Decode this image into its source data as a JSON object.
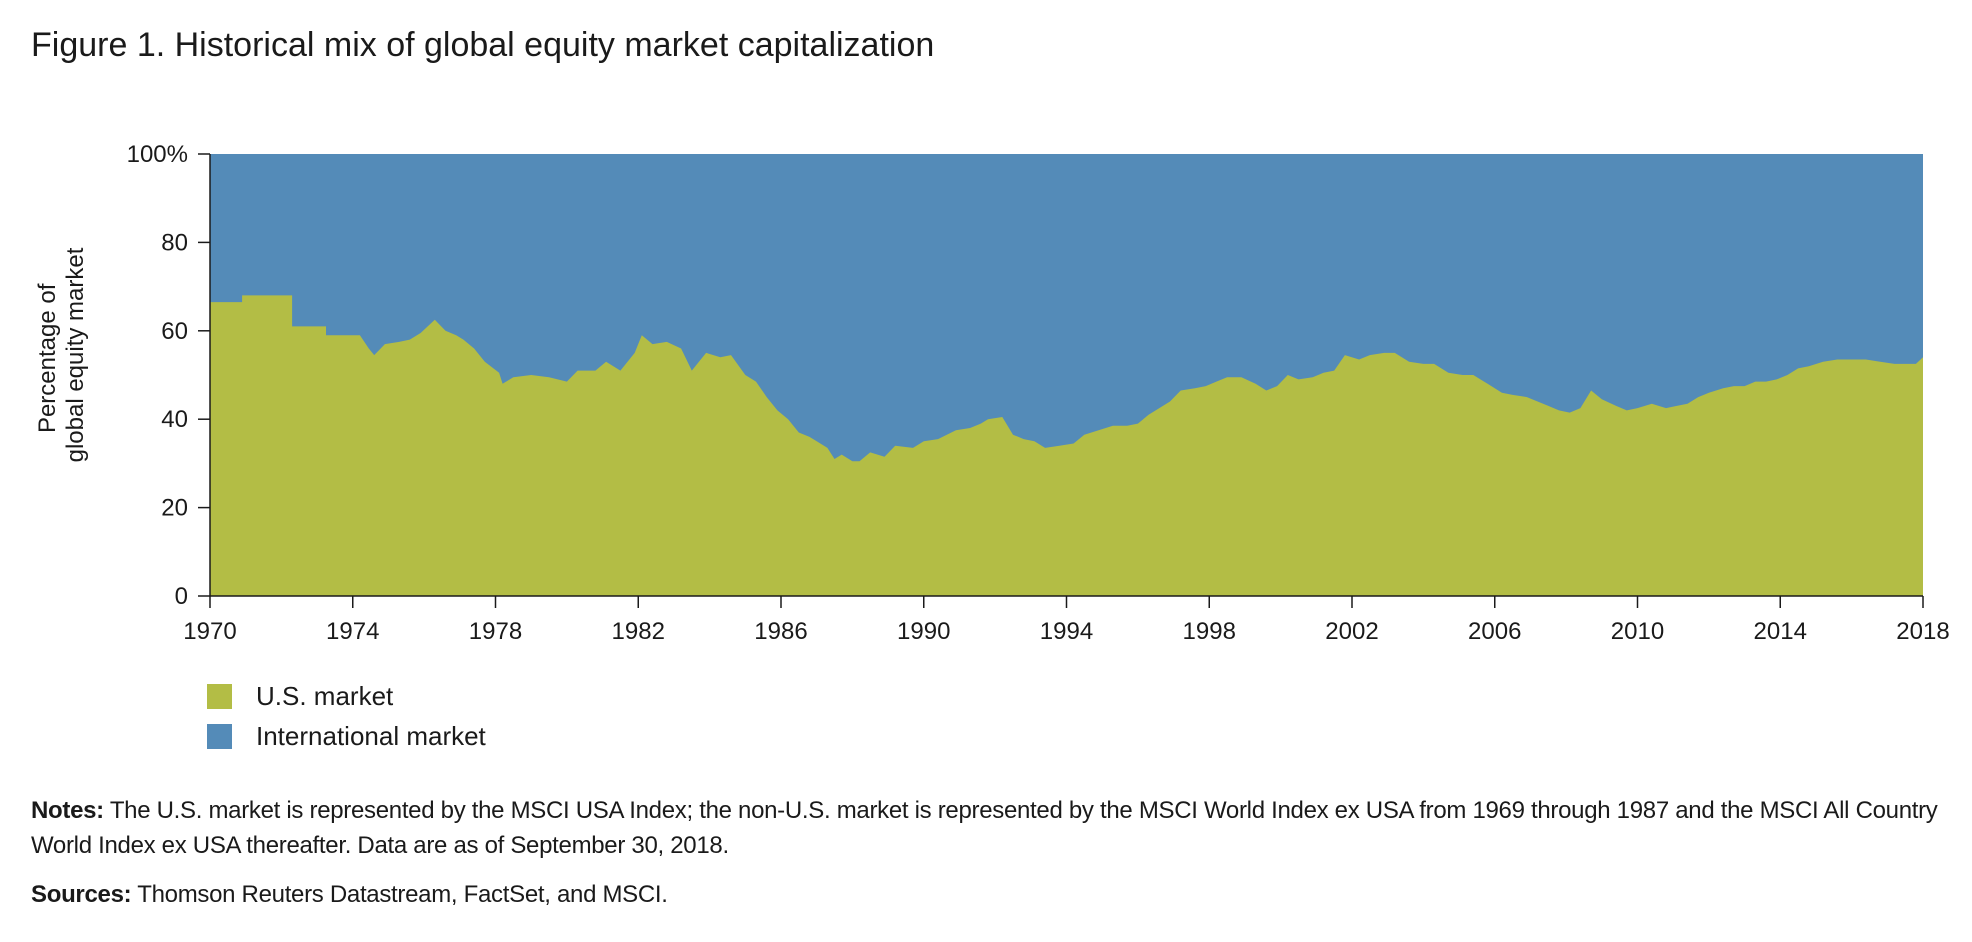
{
  "figure": {
    "title": "Figure 1. Historical mix of global equity market capitalization",
    "notes_label": "Notes:",
    "notes_text": "The U.S. market is represented by the MSCI USA Index; the non-U.S. market is represented by the MSCI World Index ex USA from 1969 through 1987 and the MSCI All Country World Index ex USA thereafter. Data are as of September 30, 2018.",
    "sources_label": "Sources:",
    "sources_text": "Thomson Reuters Datastream, FactSet, and MSCI."
  },
  "chart_data": {
    "type": "area",
    "stacked": true,
    "title": "Figure 1. Historical mix of global equity market capitalization",
    "ylabel_lines": [
      "Percentage of",
      "global equity market"
    ],
    "xlim": [
      1970,
      2018
    ],
    "ylim": [
      0,
      100
    ],
    "x_ticks": [
      1970,
      1974,
      1978,
      1982,
      1986,
      1990,
      1994,
      1998,
      2002,
      2006,
      2010,
      2014,
      2018
    ],
    "y_ticks": [
      0,
      20,
      40,
      60,
      80,
      100
    ],
    "y_tick_labels": [
      "0",
      "20",
      "40",
      "60",
      "80",
      "100%"
    ],
    "grid": false,
    "legend": "bottom-left",
    "colors": {
      "us": "#b3bd45",
      "intl": "#548bb8"
    },
    "series": [
      {
        "name": "U.S. market",
        "key": "us",
        "points": [
          [
            1970.0,
            66.5
          ],
          [
            1970.9,
            66.5
          ],
          [
            1970.9,
            68
          ],
          [
            1972.3,
            68
          ],
          [
            1972.3,
            61
          ],
          [
            1973.25,
            61
          ],
          [
            1973.25,
            59
          ],
          [
            1974.2,
            59
          ],
          [
            1974.45,
            56
          ],
          [
            1974.6,
            54.5
          ],
          [
            1974.9,
            57
          ],
          [
            1975.3,
            57.5
          ],
          [
            1975.6,
            58
          ],
          [
            1975.9,
            59.5
          ],
          [
            1976.1,
            61
          ],
          [
            1976.3,
            62.5
          ],
          [
            1976.6,
            60
          ],
          [
            1976.9,
            59
          ],
          [
            1977.1,
            58
          ],
          [
            1977.4,
            56
          ],
          [
            1977.7,
            53
          ],
          [
            1978.1,
            50.5
          ],
          [
            1978.2,
            48
          ],
          [
            1978.5,
            49.5
          ],
          [
            1979.0,
            50
          ],
          [
            1979.5,
            49.5
          ],
          [
            1980.0,
            48.5
          ],
          [
            1980.3,
            51
          ],
          [
            1980.8,
            51
          ],
          [
            1981.1,
            53
          ],
          [
            1981.5,
            51
          ],
          [
            1981.9,
            55
          ],
          [
            1982.1,
            59
          ],
          [
            1982.4,
            57
          ],
          [
            1982.8,
            57.5
          ],
          [
            1983.2,
            56
          ],
          [
            1983.5,
            51
          ],
          [
            1983.9,
            55
          ],
          [
            1984.3,
            54
          ],
          [
            1984.6,
            54.5
          ],
          [
            1985.0,
            50
          ],
          [
            1985.3,
            48.5
          ],
          [
            1985.6,
            45
          ],
          [
            1985.9,
            42
          ],
          [
            1986.2,
            40
          ],
          [
            1986.5,
            37
          ],
          [
            1986.8,
            36
          ],
          [
            1987.0,
            35
          ],
          [
            1987.3,
            33.5
          ],
          [
            1987.5,
            31
          ],
          [
            1987.7,
            32
          ],
          [
            1988.0,
            30.5
          ],
          [
            1988.2,
            30.5
          ],
          [
            1988.5,
            32.5
          ],
          [
            1988.9,
            31.5
          ],
          [
            1989.2,
            34
          ],
          [
            1989.7,
            33.5
          ],
          [
            1990.0,
            35
          ],
          [
            1990.4,
            35.5
          ],
          [
            1990.9,
            37.5
          ],
          [
            1991.3,
            38
          ],
          [
            1991.6,
            39
          ],
          [
            1991.8,
            40
          ],
          [
            1992.2,
            40.5
          ],
          [
            1992.5,
            36.5
          ],
          [
            1992.8,
            35.5
          ],
          [
            1993.1,
            35
          ],
          [
            1993.4,
            33.5
          ],
          [
            1993.8,
            34
          ],
          [
            1994.2,
            34.5
          ],
          [
            1994.5,
            36.5
          ],
          [
            1994.9,
            37.5
          ],
          [
            1995.3,
            38.5
          ],
          [
            1995.7,
            38.5
          ],
          [
            1996.0,
            39
          ],
          [
            1996.3,
            41
          ],
          [
            1996.6,
            42.5
          ],
          [
            1996.9,
            44
          ],
          [
            1997.2,
            46.5
          ],
          [
            1997.6,
            47
          ],
          [
            1997.9,
            47.5
          ],
          [
            1998.2,
            48.5
          ],
          [
            1998.5,
            49.5
          ],
          [
            1998.9,
            49.5
          ],
          [
            1999.3,
            48
          ],
          [
            1999.6,
            46.5
          ],
          [
            1999.9,
            47.5
          ],
          [
            2000.2,
            50
          ],
          [
            2000.5,
            49
          ],
          [
            2000.9,
            49.5
          ],
          [
            2001.2,
            50.5
          ],
          [
            2001.5,
            51
          ],
          [
            2001.8,
            54.5
          ],
          [
            2002.2,
            53.5
          ],
          [
            2002.5,
            54.5
          ],
          [
            2002.9,
            55
          ],
          [
            2003.2,
            55
          ],
          [
            2003.6,
            53
          ],
          [
            2004.0,
            52.5
          ],
          [
            2004.3,
            52.5
          ],
          [
            2004.7,
            50.5
          ],
          [
            2005.1,
            50
          ],
          [
            2005.4,
            50
          ],
          [
            2005.8,
            48
          ],
          [
            2006.2,
            46
          ],
          [
            2006.5,
            45.5
          ],
          [
            2006.9,
            45
          ],
          [
            2007.2,
            44
          ],
          [
            2007.5,
            43
          ],
          [
            2007.8,
            42
          ],
          [
            2008.1,
            41.5
          ],
          [
            2008.4,
            42.5
          ],
          [
            2008.7,
            46.5
          ],
          [
            2009.0,
            44.5
          ],
          [
            2009.4,
            43
          ],
          [
            2009.7,
            42
          ],
          [
            2010.0,
            42.5
          ],
          [
            2010.4,
            43.5
          ],
          [
            2010.8,
            42.5
          ],
          [
            2011.1,
            43
          ],
          [
            2011.4,
            43.5
          ],
          [
            2011.7,
            45
          ],
          [
            2012.0,
            46
          ],
          [
            2012.4,
            47
          ],
          [
            2012.7,
            47.5
          ],
          [
            2013.0,
            47.5
          ],
          [
            2013.3,
            48.5
          ],
          [
            2013.6,
            48.5
          ],
          [
            2013.9,
            49
          ],
          [
            2014.2,
            50
          ],
          [
            2014.5,
            51.5
          ],
          [
            2014.8,
            52
          ],
          [
            2015.2,
            53
          ],
          [
            2015.6,
            53.5
          ],
          [
            2016.0,
            53.5
          ],
          [
            2016.4,
            53.5
          ],
          [
            2016.8,
            53
          ],
          [
            2017.2,
            52.5
          ],
          [
            2017.5,
            52.5
          ],
          [
            2017.8,
            52.5
          ],
          [
            2018.0,
            54
          ]
        ]
      },
      {
        "name": "International market",
        "key": "intl",
        "note": "Remainder of 100%, stacked above U.S. market"
      }
    ]
  },
  "legend_items": [
    {
      "label": "U.S. market",
      "color": "#b3bd45"
    },
    {
      "label": "International market",
      "color": "#548bb8"
    }
  ]
}
